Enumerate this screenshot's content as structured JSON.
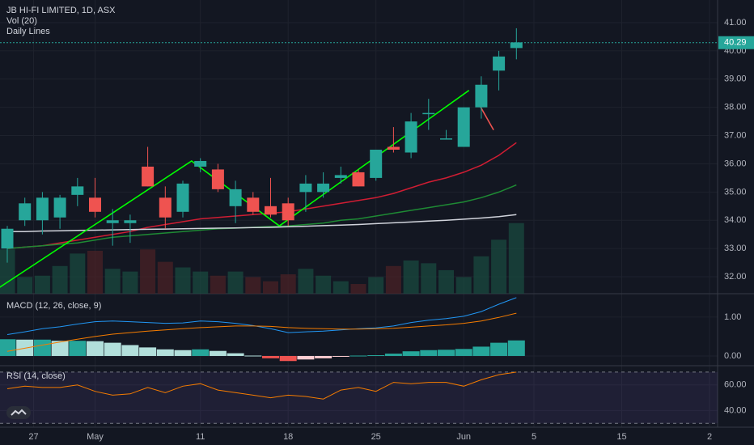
{
  "header": {
    "title": "JB HI-FI LIMITED, 1D, ASX",
    "volume_label": "Vol (20)",
    "lines_label": "Daily Lines"
  },
  "price_tag": {
    "text": "40.29",
    "value": 40.29,
    "color": "#26a69a"
  },
  "macd": {
    "title": "MACD (12, 26, close, 9)"
  },
  "rsi": {
    "title": "RSI (14, close)"
  },
  "colors": {
    "up": "#26a69a",
    "down": "#ef5350",
    "trendline": "#00ff00",
    "ma_fast": "#d01d33",
    "ma_mid": "#1e8a34",
    "ma_slow": "#d1d4dc",
    "macd_line": "#2196f3",
    "signal_line": "#f57c00",
    "rsi_line": "#f57c00",
    "rsi_band": "#7e57c2"
  },
  "chart_data": [
    {
      "type": "candlestick",
      "title": "JB HI-FI LIMITED, 1D, ASX",
      "ylim": [
        31.4,
        41.4
      ],
      "y_ticks": [
        32,
        33,
        34,
        35,
        36,
        37,
        38,
        39,
        40,
        41
      ],
      "y_tick_labels": [
        "32.00",
        "33.00",
        "34.00",
        "35.00",
        "36.00",
        "37.00",
        "38.00",
        "39.00",
        "40.00",
        "41.00"
      ],
      "x_ticks": [
        {
          "label": "27",
          "pos": 1.5
        },
        {
          "label": "May",
          "pos": 5.0
        },
        {
          "label": "11",
          "pos": 11.0
        },
        {
          "label": "18",
          "pos": 16.0
        },
        {
          "label": "25",
          "pos": 21.0
        },
        {
          "label": "Jun",
          "pos": 26.0
        },
        {
          "label": "5",
          "pos": 30.0
        },
        {
          "label": "15",
          "pos": 35.0
        },
        {
          "label": "2",
          "pos": 40.0
        }
      ],
      "grid": true,
      "candles": [
        {
          "o": 33.0,
          "h": 33.8,
          "l": 32.5,
          "c": 33.7
        },
        {
          "o": 34.0,
          "h": 34.8,
          "l": 33.8,
          "c": 34.6
        },
        {
          "o": 34.0,
          "h": 35.0,
          "l": 33.5,
          "c": 34.8
        },
        {
          "o": 34.1,
          "h": 34.9,
          "l": 33.7,
          "c": 34.8
        },
        {
          "o": 34.9,
          "h": 35.5,
          "l": 34.5,
          "c": 35.2
        },
        {
          "o": 34.8,
          "h": 35.5,
          "l": 34.1,
          "c": 34.3
        },
        {
          "o": 33.9,
          "h": 34.4,
          "l": 33.1,
          "c": 34.0
        },
        {
          "o": 33.9,
          "h": 34.2,
          "l": 33.2,
          "c": 34.0
        },
        {
          "o": 35.9,
          "h": 36.6,
          "l": 35.2,
          "c": 35.2
        },
        {
          "o": 34.8,
          "h": 35.2,
          "l": 33.7,
          "c": 34.1
        },
        {
          "o": 34.3,
          "h": 35.4,
          "l": 34.1,
          "c": 35.3
        },
        {
          "o": 35.9,
          "h": 36.2,
          "l": 35.7,
          "c": 36.1
        },
        {
          "o": 35.8,
          "h": 36.0,
          "l": 35.0,
          "c": 35.1
        },
        {
          "o": 34.5,
          "h": 35.4,
          "l": 33.9,
          "c": 35.1
        },
        {
          "o": 34.8,
          "h": 35.0,
          "l": 34.2,
          "c": 34.3
        },
        {
          "o": 34.5,
          "h": 35.5,
          "l": 34.1,
          "c": 34.2
        },
        {
          "o": 34.6,
          "h": 34.8,
          "l": 33.8,
          "c": 34.0
        },
        {
          "o": 35.0,
          "h": 35.6,
          "l": 34.3,
          "c": 35.3
        },
        {
          "o": 35.0,
          "h": 35.7,
          "l": 34.8,
          "c": 35.3
        },
        {
          "o": 35.5,
          "h": 35.9,
          "l": 35.3,
          "c": 35.6
        },
        {
          "o": 35.7,
          "h": 35.8,
          "l": 35.2,
          "c": 35.2
        },
        {
          "o": 35.5,
          "h": 36.5,
          "l": 35.4,
          "c": 36.5
        },
        {
          "o": 36.6,
          "h": 37.3,
          "l": 36.4,
          "c": 36.5
        },
        {
          "o": 36.4,
          "h": 37.8,
          "l": 36.2,
          "c": 37.5
        },
        {
          "o": 37.8,
          "h": 38.3,
          "l": 37.2,
          "c": 37.8
        },
        {
          "o": 36.9,
          "h": 37.2,
          "l": 36.9,
          "c": 36.9
        },
        {
          "o": 36.6,
          "h": 38.0,
          "l": 36.6,
          "c": 38.0
        },
        {
          "o": 38.0,
          "h": 39.1,
          "l": 37.6,
          "c": 38.8
        },
        {
          "o": 39.3,
          "h": 40.0,
          "l": 38.6,
          "c": 39.8
        },
        {
          "o": 40.1,
          "h": 40.8,
          "l": 39.7,
          "c": 40.3
        }
      ],
      "series": [
        {
          "name": "",
          "color": "#d01d33",
          "values": [
            33.0,
            33.05,
            33.1,
            33.2,
            33.3,
            33.4,
            33.5,
            33.6,
            33.75,
            33.85,
            33.95,
            34.05,
            34.1,
            34.15,
            34.2,
            34.25,
            34.3,
            34.4,
            34.5,
            34.6,
            34.7,
            34.8,
            34.95,
            35.15,
            35.35,
            35.5,
            35.7,
            35.95,
            36.3,
            36.75
          ]
        },
        {
          "name": "",
          "color": "#1e8a34",
          "values": [
            33.0,
            33.05,
            33.1,
            33.15,
            33.2,
            33.3,
            33.4,
            33.45,
            33.5,
            33.55,
            33.6,
            33.65,
            33.7,
            33.72,
            33.75,
            33.78,
            33.8,
            33.85,
            33.9,
            34.0,
            34.05,
            34.15,
            34.25,
            34.35,
            34.45,
            34.55,
            34.65,
            34.8,
            35.0,
            35.25
          ]
        },
        {
          "name": "",
          "color": "#d1d4dc",
          "values": [
            33.6,
            33.6,
            33.62,
            33.63,
            33.64,
            33.65,
            33.66,
            33.67,
            33.68,
            33.69,
            33.7,
            33.71,
            33.72,
            33.73,
            33.74,
            33.75,
            33.77,
            33.79,
            33.81,
            33.83,
            33.85,
            33.88,
            33.91,
            33.94,
            33.97,
            34.0,
            34.04,
            34.08,
            34.13,
            34.2
          ]
        }
      ],
      "trendlines": [
        {
          "points": [
            [
              -0.5,
              31.6
            ],
            [
              10.5,
              36.1
            ],
            [
              15.5,
              33.8
            ],
            [
              26.3,
              38.6
            ]
          ],
          "color": "#00ff00"
        },
        {
          "points": [
            [
              26.7,
              38.3
            ],
            [
              27.7,
              37.2
            ]
          ],
          "color": "#ef5350"
        }
      ],
      "volume": [
        0.32,
        0.12,
        0.13,
        0.2,
        0.29,
        0.31,
        0.18,
        0.16,
        0.32,
        0.23,
        0.19,
        0.16,
        0.13,
        0.16,
        0.12,
        0.09,
        0.14,
        0.18,
        0.13,
        0.09,
        0.07,
        0.12,
        0.2,
        0.24,
        0.22,
        0.17,
        0.12,
        0.27,
        0.39,
        0.51
      ]
    },
    {
      "type": "line",
      "title": "MACD (12, 26, close, 9)",
      "ylim": [
        -0.25,
        1.6
      ],
      "y_ticks": [
        0,
        1
      ],
      "y_tick_labels": [
        "0.00",
        "1.00"
      ],
      "series": [
        {
          "name": "",
          "color": "#2196f3",
          "values": [
            0.55,
            0.62,
            0.7,
            0.75,
            0.82,
            0.88,
            0.9,
            0.88,
            0.86,
            0.84,
            0.85,
            0.9,
            0.88,
            0.84,
            0.78,
            0.7,
            0.6,
            0.62,
            0.64,
            0.67,
            0.7,
            0.72,
            0.77,
            0.86,
            0.92,
            0.96,
            1.02,
            1.14,
            1.33,
            1.5
          ]
        },
        {
          "name": "",
          "color": "#f57c00",
          "values": [
            0.12,
            0.2,
            0.28,
            0.36,
            0.43,
            0.5,
            0.56,
            0.6,
            0.64,
            0.67,
            0.7,
            0.73,
            0.75,
            0.77,
            0.77,
            0.76,
            0.73,
            0.71,
            0.7,
            0.69,
            0.69,
            0.7,
            0.71,
            0.74,
            0.77,
            0.8,
            0.84,
            0.9,
            0.99,
            1.1
          ]
        }
      ],
      "histogram": [
        0.43,
        0.42,
        0.42,
        0.39,
        0.39,
        0.38,
        0.34,
        0.28,
        0.22,
        0.17,
        0.15,
        0.17,
        0.13,
        0.07,
        0.01,
        -0.06,
        -0.13,
        -0.09,
        -0.06,
        -0.02,
        0.01,
        0.02,
        0.06,
        0.12,
        0.15,
        0.16,
        0.18,
        0.24,
        0.34,
        0.4
      ]
    },
    {
      "type": "line",
      "title": "RSI (14, close)",
      "ylim": [
        27,
        75
      ],
      "y_ticks": [
        40,
        60
      ],
      "y_tick_labels": [
        "40.00",
        "60.00"
      ],
      "band": [
        30,
        70
      ],
      "series": [
        {
          "name": "",
          "color": "#f57c00",
          "values": [
            57,
            59,
            58,
            58,
            60,
            55,
            52,
            53,
            58,
            54,
            59,
            61,
            56,
            54,
            52,
            50,
            52,
            51,
            49,
            56,
            58,
            55,
            62,
            61,
            62,
            62,
            59,
            64,
            68,
            70
          ]
        }
      ]
    }
  ]
}
